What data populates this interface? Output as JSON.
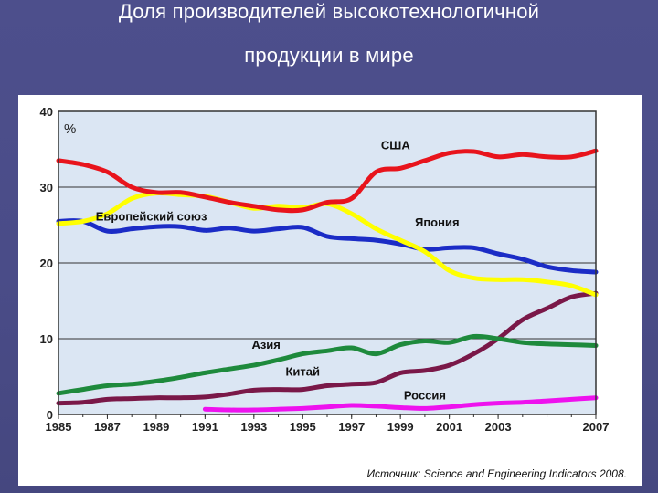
{
  "slide": {
    "title_line1": "Доля производителей высокотехнологичной",
    "title_line2": "продукции в мире",
    "source": "Источник: Science and Engineering Indicators 2008."
  },
  "colors": {
    "background": "#4b4d8a",
    "plot_bg": "#dbe6f3",
    "usa": "#e8141c",
    "japan": "#ffff00",
    "eu": "#1b2cc6",
    "asia": "#1e8a3c",
    "china": "#7a1848",
    "russia": "#ee12ee"
  },
  "chart_data": {
    "type": "line",
    "ylabel": "%",
    "ylim": [
      0,
      40
    ],
    "xlim": [
      1985,
      2007
    ],
    "y_ticks": [
      "0",
      "10",
      "20",
      "30",
      "40"
    ],
    "x_ticks": [
      "1985",
      "1987",
      "1989",
      "1991",
      "1993",
      "1995",
      "1997",
      "1999",
      "2001",
      "2003",
      "2007"
    ],
    "grid": true,
    "series": [
      {
        "name": "США",
        "key": "usa",
        "x": [
          1985,
          1986,
          1987,
          1988,
          1989,
          1990,
          1991,
          1992,
          1993,
          1994,
          1995,
          1996,
          1997,
          1998,
          1999,
          2000,
          2001,
          2002,
          2003,
          2004,
          2005,
          2006,
          2007
        ],
        "values": [
          33.5,
          33,
          32,
          30,
          29.3,
          29.3,
          28.7,
          28,
          27.5,
          27,
          27,
          28,
          28.5,
          32,
          32.5,
          33.5,
          34.5,
          34.7,
          34,
          34.3,
          34,
          34,
          34.8
        ]
      },
      {
        "name": "Европейский союз",
        "key": "eu",
        "x": [
          1985,
          1986,
          1987,
          1988,
          1989,
          1990,
          1991,
          1992,
          1993,
          1994,
          1995,
          1996,
          1997,
          1998,
          1999,
          2000,
          2001,
          2002,
          2003,
          2004,
          2005,
          2006,
          2007
        ],
        "values": [
          25.5,
          25.5,
          24.2,
          24.5,
          24.8,
          24.8,
          24.3,
          24.6,
          24.2,
          24.5,
          24.7,
          23.5,
          23.2,
          23,
          22.5,
          21.8,
          22,
          22,
          21.2,
          20.5,
          19.5,
          19,
          18.8
        ]
      },
      {
        "name": "Япония",
        "key": "japan",
        "x": [
          1985,
          1986,
          1987,
          1988,
          1989,
          1990,
          1991,
          1992,
          1993,
          1994,
          1995,
          1996,
          1997,
          1998,
          1999,
          2000,
          2001,
          2002,
          2003,
          2004,
          2005,
          2006,
          2007
        ],
        "values": [
          25.2,
          25.5,
          26.5,
          28.5,
          29.2,
          29,
          28.8,
          28,
          27.2,
          27.5,
          27.3,
          27.8,
          26.5,
          24.5,
          23,
          21.5,
          19,
          18,
          17.8,
          17.8,
          17.5,
          17,
          15.8
        ]
      },
      {
        "name": "Азия",
        "key": "asia",
        "x": [
          1985,
          1986,
          1987,
          1988,
          1989,
          1990,
          1991,
          1992,
          1993,
          1994,
          1995,
          1996,
          1997,
          1998,
          1999,
          2000,
          2001,
          2002,
          2003,
          2004,
          2005,
          2006,
          2007
        ],
        "values": [
          2.8,
          3.3,
          3.8,
          4,
          4.4,
          4.9,
          5.5,
          6,
          6.5,
          7.2,
          8,
          8.4,
          8.8,
          8,
          9.2,
          9.7,
          9.5,
          10.3,
          10,
          9.5,
          9.3,
          9.2,
          9.1
        ]
      },
      {
        "name": "Китай",
        "key": "china",
        "x": [
          1985,
          1986,
          1987,
          1988,
          1989,
          1990,
          1991,
          1992,
          1993,
          1994,
          1995,
          1996,
          1997,
          1998,
          1999,
          2000,
          2001,
          2002,
          2003,
          2004,
          2005,
          2006,
          2007
        ],
        "values": [
          1.5,
          1.6,
          2,
          2.1,
          2.2,
          2.2,
          2.3,
          2.7,
          3.2,
          3.3,
          3.3,
          3.8,
          4,
          4.2,
          5.5,
          5.8,
          6.5,
          8,
          10,
          12.5,
          14,
          15.5,
          16
        ]
      },
      {
        "name": "Россия",
        "key": "russia",
        "x": [
          1991,
          1992,
          1993,
          1994,
          1995,
          1996,
          1997,
          1998,
          1999,
          2000,
          2001,
          2002,
          2003,
          2004,
          2005,
          2006,
          2007
        ],
        "values": [
          0.7,
          0.6,
          0.6,
          0.7,
          0.8,
          1,
          1.2,
          1.1,
          0.9,
          0.8,
          1,
          1.3,
          1.5,
          1.6,
          1.8,
          2,
          2.2
        ]
      }
    ]
  }
}
